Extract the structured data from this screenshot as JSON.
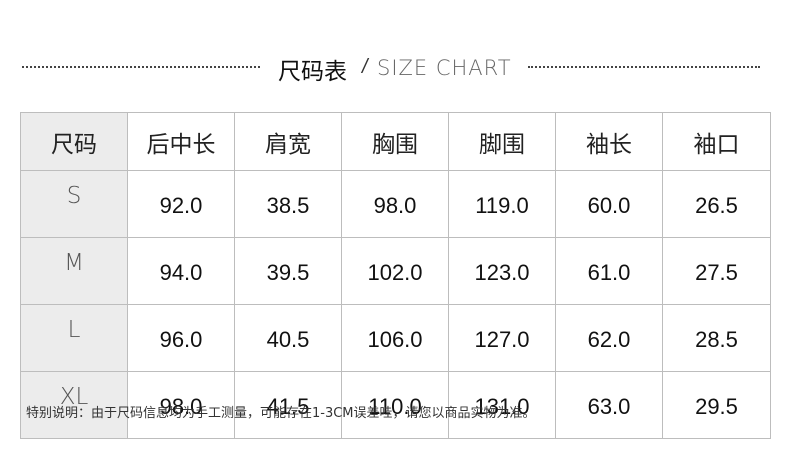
{
  "title": {
    "zh": "尺码表",
    "sep": "/",
    "en": "SIZE CHART"
  },
  "table": {
    "headers": [
      "尺码",
      "后中长",
      "肩宽",
      "胸围",
      "脚围",
      "袖长",
      "袖口"
    ],
    "rows": [
      {
        "size": "S",
        "values": [
          "92.0",
          "38.5",
          "98.0",
          "119.0",
          "60.0",
          "26.5"
        ]
      },
      {
        "size": "M",
        "values": [
          "94.0",
          "39.5",
          "102.0",
          "123.0",
          "61.0",
          "27.5"
        ]
      },
      {
        "size": "L",
        "values": [
          "96.0",
          "40.5",
          "106.0",
          "127.0",
          "62.0",
          "28.5"
        ]
      },
      {
        "size": "XL",
        "values": [
          "98.0",
          "41.5",
          "110.0",
          "131.0",
          "63.0",
          "29.5"
        ]
      }
    ]
  },
  "note": "特别说明：由于尺码信息均为手工测量，可能存在1-3CM误差哇，请您以商品实物为准。"
}
